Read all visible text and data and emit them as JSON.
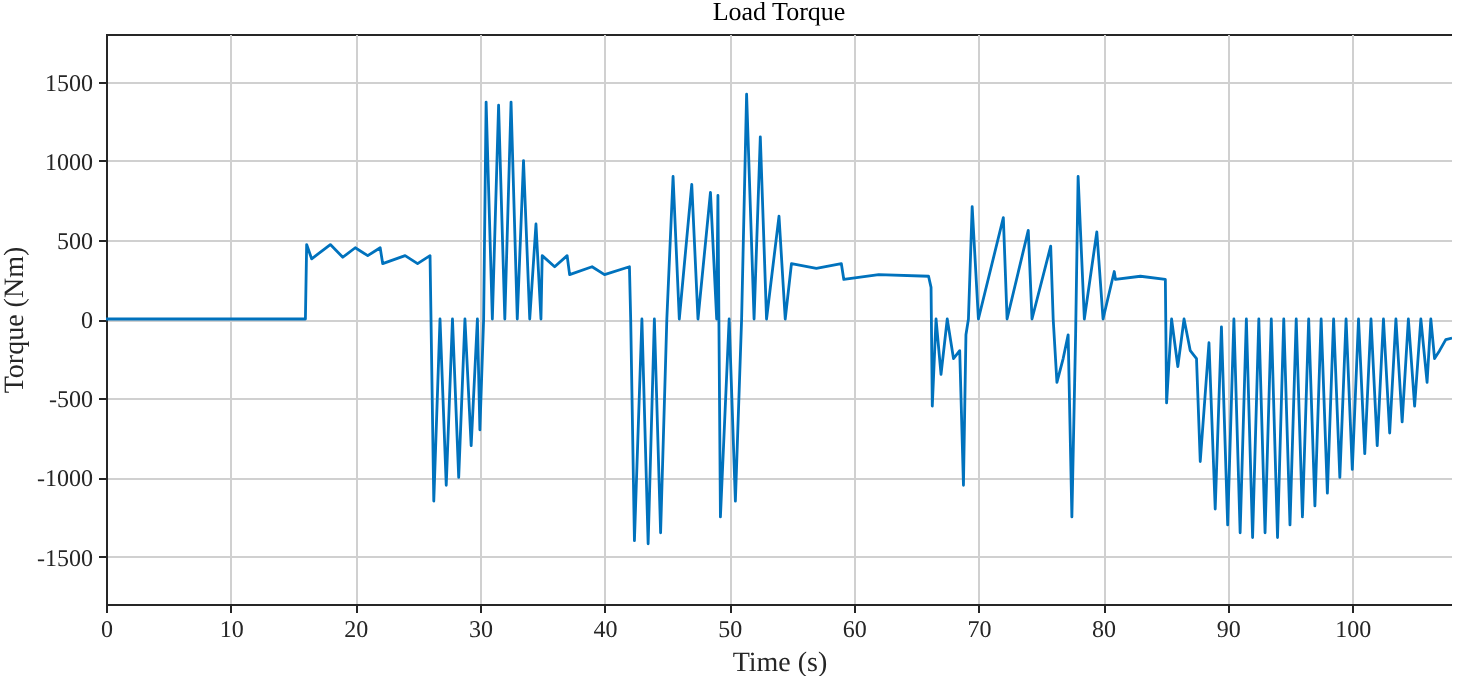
{
  "chart_data": {
    "type": "line",
    "title": "Load Torque",
    "xlabel": "Time (s)",
    "ylabel": "Torque (Nm)",
    "xlim": [
      0,
      108
    ],
    "ylim": [
      -1800,
      1800
    ],
    "xticks": [
      0,
      10,
      20,
      30,
      40,
      50,
      60,
      70,
      80,
      90,
      100
    ],
    "yticks": [
      -1500,
      -1000,
      -500,
      0,
      500,
      1000,
      1500
    ],
    "grid": true,
    "marker": "none",
    "line_style": "solid",
    "series": [
      {
        "color": "#0072bd",
        "x": [
          0,
          16,
          16.1,
          16.5,
          18,
          19,
          20,
          21,
          22,
          22.2,
          24,
          25,
          26,
          26.3,
          26.8,
          27.3,
          27.8,
          28.3,
          28.8,
          29.3,
          29.8,
          30,
          30.3,
          30.5,
          31,
          31.5,
          32,
          32.5,
          33,
          33.5,
          34,
          34.5,
          34.9,
          35,
          36,
          37,
          37.2,
          39,
          40,
          42,
          42.1,
          42.4,
          43,
          43.5,
          44,
          44.5,
          45,
          45.5,
          46,
          47,
          47.5,
          48.5,
          49,
          49.1,
          49.3,
          50,
          50.5,
          51,
          51.4,
          52,
          52.5,
          53,
          54,
          54.5,
          55,
          57,
          59,
          59.2,
          62,
          66,
          66.2,
          66.3,
          66.6,
          67,
          67.5,
          68,
          68.5,
          68.8,
          69,
          69.2,
          69.5,
          70,
          72,
          72.3,
          74,
          74.3,
          75.8,
          76,
          76.3,
          76.8,
          77.2,
          77.5,
          77.8,
          78,
          78.5,
          79.5,
          80,
          80.9,
          81,
          83,
          85,
          85.1,
          85.5,
          86,
          86.5,
          87,
          87.5,
          87.8,
          88.5,
          89,
          89.5,
          90,
          90.5,
          91,
          91.5,
          92,
          92.5,
          93,
          93.5,
          94,
          94.5,
          95,
          95.5,
          96,
          96.5,
          97,
          97.5,
          98,
          98.5,
          99,
          99.5,
          100,
          100.5,
          101,
          101.5,
          102,
          102.5,
          103,
          103.5,
          104,
          104.5,
          105,
          105.5,
          106,
          106.3,
          106.6,
          107,
          107.5,
          108
        ],
        "values": [
          0,
          0,
          470,
          380,
          470,
          390,
          450,
          400,
          450,
          350,
          400,
          350,
          400,
          -1150,
          0,
          -1050,
          0,
          -1000,
          0,
          -800,
          0,
          -700,
          0,
          1370,
          0,
          1350,
          0,
          1370,
          0,
          1000,
          0,
          600,
          0,
          400,
          330,
          400,
          280,
          330,
          280,
          330,
          0,
          -1400,
          0,
          -1420,
          0,
          -1350,
          0,
          900,
          0,
          850,
          0,
          800,
          0,
          780,
          -1250,
          0,
          -1150,
          0,
          1420,
          0,
          1150,
          0,
          650,
          0,
          350,
          320,
          350,
          250,
          280,
          270,
          200,
          -550,
          0,
          -350,
          0,
          -250,
          -200,
          -1050,
          -100,
          0,
          710,
          0,
          640,
          0,
          560,
          0,
          460,
          0,
          -400,
          -250,
          -100,
          -1250,
          -100,
          900,
          0,
          550,
          0,
          300,
          250,
          270,
          250,
          -530,
          0,
          -300,
          0,
          -200,
          -250,
          -900,
          -150,
          -1200,
          -50,
          -1300,
          0,
          -1350,
          0,
          -1380,
          0,
          -1350,
          0,
          -1380,
          0,
          -1300,
          0,
          -1250,
          0,
          -1180,
          0,
          -1100,
          0,
          -1000,
          0,
          -950,
          0,
          -850,
          0,
          -800,
          0,
          -720,
          0,
          -650,
          0,
          -550,
          0,
          -400,
          0,
          -250,
          -200,
          -130,
          -120
        ]
      }
    ]
  }
}
